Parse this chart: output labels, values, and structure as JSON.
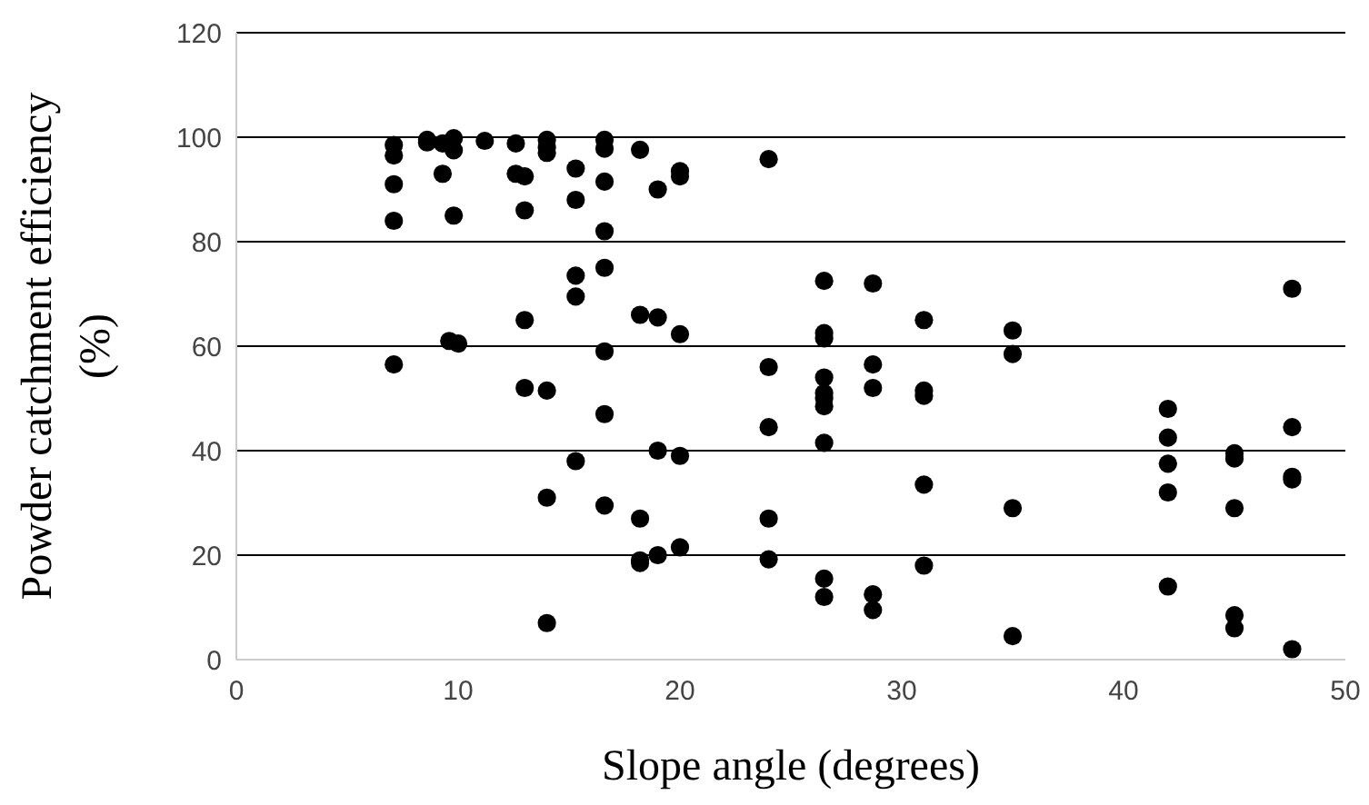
{
  "chart_data": {
    "type": "scatter",
    "xlabel": "Slope angle (degrees)",
    "ylabel": "Powder catchment  efficiency (%)",
    "x": [
      7.1,
      7.1,
      7.1,
      7.1,
      7.1,
      8.6,
      8.6,
      9.3,
      9.3,
      9.8,
      9.8,
      9.8,
      9.6,
      10,
      11.2,
      12.6,
      12.6,
      13,
      13,
      13,
      13,
      14,
      14,
      14,
      14,
      14,
      14,
      15.3,
      15.3,
      15.3,
      15.3,
      15.3,
      16.6,
      16.6,
      16.6,
      16.6,
      16.6,
      16.6,
      16.6,
      16.6,
      18.2,
      18.2,
      18.2,
      18.2,
      18.2,
      19,
      19,
      19,
      19,
      20,
      20,
      20,
      20,
      20,
      24,
      24,
      24,
      24,
      24,
      26.5,
      26.5,
      26.5,
      26.5,
      26.5,
      26.5,
      26.5,
      26.5,
      26.5,
      26.5,
      28.7,
      28.7,
      28.7,
      28.7,
      28.7,
      31,
      31,
      31,
      31,
      31,
      35,
      35,
      35,
      35,
      42,
      42,
      42,
      42,
      42,
      45,
      45,
      45,
      45,
      45,
      47.6,
      47.6,
      47.6,
      47.6,
      47.6
    ],
    "values": [
      98.5,
      96.5,
      91,
      84,
      56.5,
      99.5,
      99,
      98.8,
      93,
      99.8,
      97.5,
      85,
      61,
      60.5,
      99.3,
      98.8,
      93,
      92.5,
      86,
      65,
      52,
      99.5,
      98,
      97,
      51.5,
      31,
      7,
      94,
      88,
      73.5,
      69.5,
      38,
      99.5,
      97.8,
      91.5,
      82,
      75,
      59,
      47,
      29.5,
      97.6,
      66,
      27,
      19,
      18.5,
      90,
      65.5,
      40,
      20,
      93.5,
      92.5,
      62.3,
      39,
      21.5,
      95.8,
      56,
      44.5,
      27,
      19.2,
      72.5,
      62.5,
      61.5,
      54,
      51,
      50,
      48.5,
      41.5,
      15.5,
      12,
      72,
      56.5,
      52,
      12.5,
      9.5,
      65,
      51.5,
      50.5,
      33.5,
      18,
      63,
      58.5,
      29,
      4.5,
      48,
      42.5,
      37.5,
      32,
      14,
      39.5,
      38.5,
      29,
      8.5,
      6,
      71,
      44.5,
      35,
      34.5,
      2
    ],
    "color": "#000000",
    "marker": "circle",
    "grid": "y",
    "xlim": [
      0,
      50
    ],
    "xticks": [
      0,
      10,
      20,
      30,
      40,
      50
    ],
    "ylim": [
      0,
      120
    ],
    "yticks": [
      0,
      20,
      40,
      60,
      80,
      100,
      120
    ]
  }
}
